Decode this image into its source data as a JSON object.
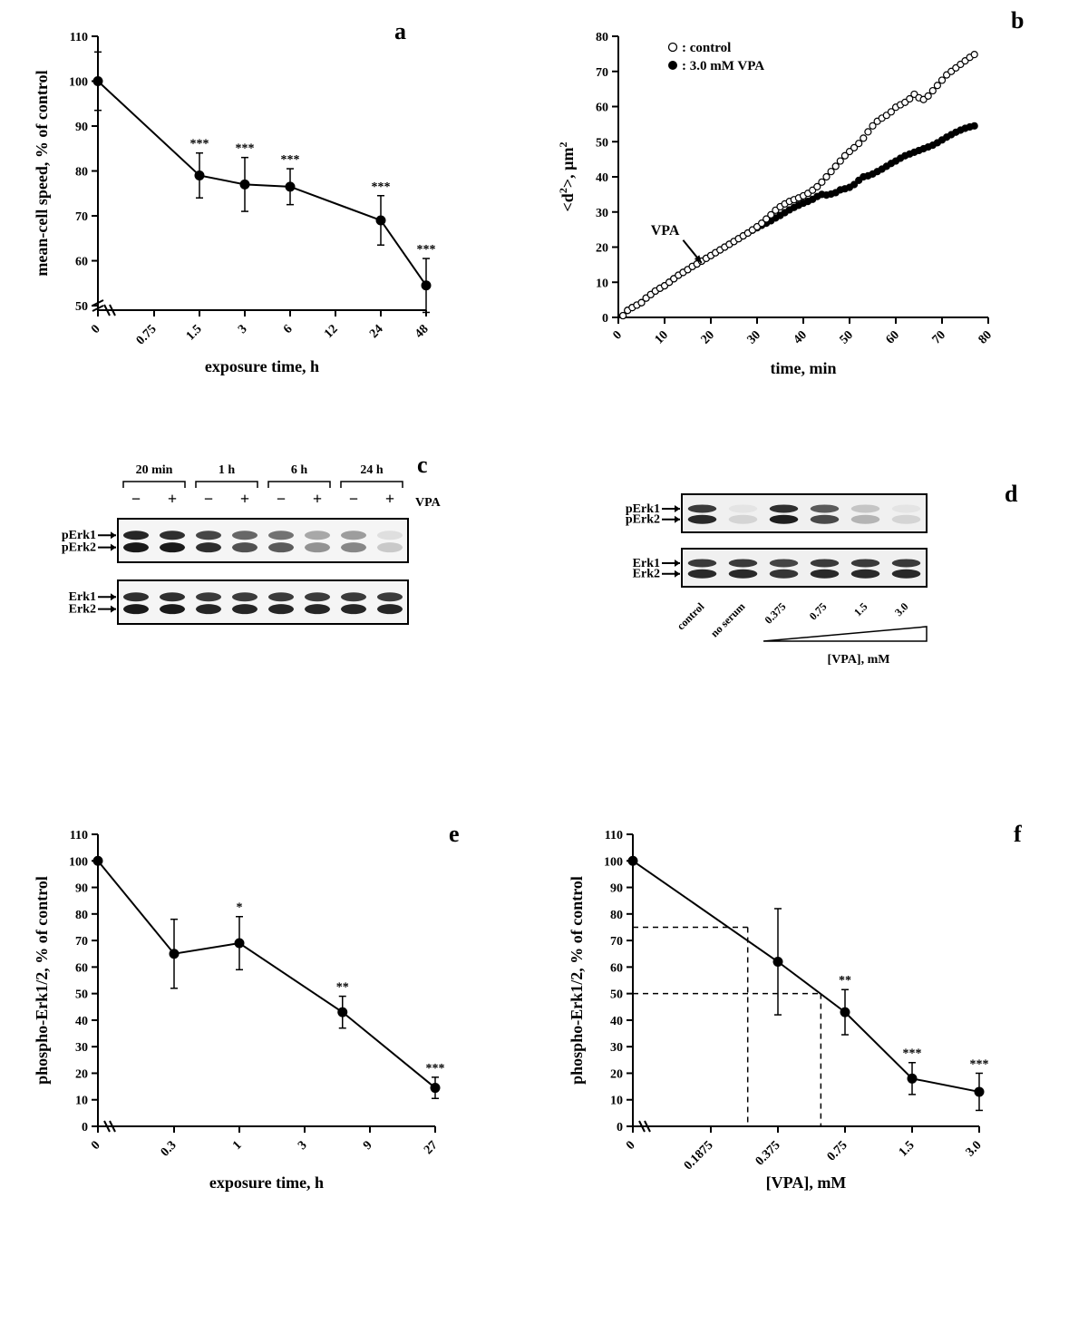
{
  "panels": {
    "a": {
      "label": "a",
      "label_fontsize": 26,
      "type": "line",
      "xlabel": "exposure time, h",
      "ylabel": "mean-cell speed, % of control",
      "label_fontsize_axis": 18,
      "tick_fontsize": 14,
      "ylim": [
        49,
        110
      ],
      "ytick_step": 10,
      "xticks": [
        0,
        0.75,
        1.5,
        3,
        6,
        12,
        24,
        48
      ],
      "xtick_labels": [
        "0",
        "0.75",
        "1.5",
        "3",
        "6",
        "12",
        "24",
        "48"
      ],
      "data": {
        "x_index": [
          0,
          2,
          3,
          4,
          6,
          7
        ],
        "y": [
          100,
          79,
          77,
          76.5,
          69,
          54.5
        ],
        "yerr": [
          6.5,
          5,
          6,
          4,
          5.5,
          6
        ],
        "sig": [
          "",
          "***",
          "***",
          "***",
          "***",
          "***"
        ]
      },
      "marker": {
        "fill": "#000000",
        "radius": 5
      },
      "line_color": "#000000",
      "line_width": 2,
      "error_cap_width": 8,
      "sig_fontsize": 14,
      "axis_break": true
    },
    "b": {
      "label": "b",
      "label_fontsize": 26,
      "type": "scatter",
      "xlabel": "time, min",
      "ylabel": "<d²>, µm²",
      "ylabel_raw": "<d²>, μm²",
      "label_fontsize_axis": 18,
      "tick_fontsize": 14,
      "xlim": [
        0,
        80
      ],
      "xtick_step": 10,
      "ylim": [
        0,
        80
      ],
      "ytick_step": 10,
      "legend": [
        {
          "marker": "open_circle",
          "label_prefix": "○:",
          "text": "control"
        },
        {
          "marker": "filled_circle",
          "label_prefix": "●:",
          "text": "3.0 mM VPA"
        }
      ],
      "legend_fontsize": 15,
      "arrow_label": "VPA",
      "arrow_label_fontsize": 16,
      "arrow_from": [
        14,
        22
      ],
      "arrow_to": [
        18,
        15.5
      ],
      "series": {
        "control": {
          "style": "open_circle",
          "radius": 3.5,
          "stroke": "#000000",
          "fill": "#ffffff",
          "points": [
            [
              1,
              0.5
            ],
            [
              2,
              2
            ],
            [
              3,
              2.8
            ],
            [
              4,
              3.5
            ],
            [
              5,
              4.2
            ],
            [
              6,
              5.5
            ],
            [
              7,
              6.5
            ],
            [
              8,
              7.5
            ],
            [
              9,
              8.3
            ],
            [
              10,
              9.0
            ],
            [
              11,
              10.0
            ],
            [
              12,
              11.0
            ],
            [
              13,
              12.0
            ],
            [
              14,
              12.8
            ],
            [
              15,
              13.6
            ],
            [
              16,
              14.5
            ],
            [
              17,
              15.2
            ],
            [
              18,
              16.0
            ],
            [
              19,
              16.8
            ],
            [
              20,
              17.6
            ],
            [
              21,
              18.4
            ],
            [
              22,
              19.2
            ],
            [
              23,
              20.0
            ],
            [
              24,
              20.8
            ],
            [
              25,
              21.6
            ],
            [
              26,
              22.4
            ],
            [
              27,
              23.2
            ],
            [
              28,
              24.0
            ],
            [
              29,
              24.9
            ],
            [
              30,
              25.8
            ],
            [
              31,
              26.8
            ],
            [
              32,
              28.0
            ],
            [
              33,
              29.2
            ],
            [
              34,
              30.5
            ],
            [
              35,
              31.5
            ],
            [
              36,
              32.3
            ],
            [
              37,
              33.0
            ],
            [
              38,
              33.5
            ],
            [
              39,
              34.0
            ],
            [
              40,
              34.6
            ],
            [
              41,
              35.3
            ],
            [
              42,
              36.2
            ],
            [
              43,
              37.2
            ],
            [
              44,
              38.5
            ],
            [
              45,
              40.0
            ],
            [
              46,
              41.5
            ],
            [
              47,
              43.0
            ],
            [
              48,
              44.5
            ],
            [
              49,
              46.0
            ],
            [
              50,
              47.2
            ],
            [
              51,
              48.3
            ],
            [
              52,
              49.5
            ],
            [
              53,
              51.0
            ],
            [
              54,
              52.8
            ],
            [
              55,
              54.5
            ],
            [
              56,
              55.8
            ],
            [
              57,
              56.7
            ],
            [
              58,
              57.5
            ],
            [
              59,
              58.5
            ],
            [
              60,
              59.8
            ],
            [
              61,
              60.5
            ],
            [
              62,
              61.2
            ],
            [
              63,
              62.2
            ],
            [
              64,
              63.5
            ],
            [
              65,
              62.5
            ],
            [
              66,
              62.0
            ],
            [
              67,
              63.0
            ],
            [
              68,
              64.5
            ],
            [
              69,
              66.0
            ],
            [
              70,
              67.5
            ],
            [
              71,
              69.0
            ],
            [
              72,
              70.0
            ],
            [
              73,
              71.0
            ],
            [
              74,
              72.0
            ],
            [
              75,
              73.0
            ],
            [
              76,
              74.0
            ],
            [
              77,
              74.8
            ]
          ]
        },
        "vpa": {
          "style": "filled_circle",
          "radius": 3.5,
          "stroke": "#000000",
          "fill": "#000000",
          "points": [
            [
              1,
              0.5
            ],
            [
              2,
              2.0
            ],
            [
              3,
              2.8
            ],
            [
              4,
              3.5
            ],
            [
              5,
              4.2
            ],
            [
              6,
              5.5
            ],
            [
              7,
              6.5
            ],
            [
              8,
              7.5
            ],
            [
              9,
              8.3
            ],
            [
              10,
              9.0
            ],
            [
              11,
              10.0
            ],
            [
              12,
              11.0
            ],
            [
              13,
              12.0
            ],
            [
              14,
              12.8
            ],
            [
              15,
              13.6
            ],
            [
              16,
              14.5
            ],
            [
              17,
              15.2
            ],
            [
              18,
              16.0
            ],
            [
              19,
              16.8
            ],
            [
              20,
              17.6
            ],
            [
              21,
              18.4
            ],
            [
              22,
              19.2
            ],
            [
              23,
              20.0
            ],
            [
              24,
              20.8
            ],
            [
              25,
              21.6
            ],
            [
              26,
              22.4
            ],
            [
              27,
              23.2
            ],
            [
              28,
              24.0
            ],
            [
              29,
              24.8
            ],
            [
              30,
              25.5
            ],
            [
              31,
              26.2
            ],
            [
              32,
              26.8
            ],
            [
              33,
              27.5
            ],
            [
              34,
              28.3
            ],
            [
              35,
              29.0
            ],
            [
              36,
              29.8
            ],
            [
              37,
              30.6
            ],
            [
              38,
              31.3
            ],
            [
              39,
              31.9
            ],
            [
              40,
              32.5
            ],
            [
              41,
              33.0
            ],
            [
              42,
              33.6
            ],
            [
              43,
              34.4
            ],
            [
              44,
              35.0
            ],
            [
              45,
              34.8
            ],
            [
              46,
              35.1
            ],
            [
              47,
              35.5
            ],
            [
              48,
              36.3
            ],
            [
              49,
              36.6
            ],
            [
              50,
              37.0
            ],
            [
              51,
              37.8
            ],
            [
              52,
              39.0
            ],
            [
              53,
              40.0
            ],
            [
              54,
              40.3
            ],
            [
              55,
              40.8
            ],
            [
              56,
              41.5
            ],
            [
              57,
              42.2
            ],
            [
              58,
              43.0
            ],
            [
              59,
              43.8
            ],
            [
              60,
              44.5
            ],
            [
              61,
              45.3
            ],
            [
              62,
              46.0
            ],
            [
              63,
              46.5
            ],
            [
              64,
              47.0
            ],
            [
              65,
              47.5
            ],
            [
              66,
              48.0
            ],
            [
              67,
              48.5
            ],
            [
              68,
              49.0
            ],
            [
              69,
              49.7
            ],
            [
              70,
              50.5
            ],
            [
              71,
              51.3
            ],
            [
              72,
              52.0
            ],
            [
              73,
              52.7
            ],
            [
              74,
              53.3
            ],
            [
              75,
              53.8
            ],
            [
              76,
              54.2
            ],
            [
              77,
              54.5
            ]
          ]
        }
      }
    },
    "c": {
      "label": "c",
      "label_fontsize": 26,
      "type": "western_blot",
      "time_groups": [
        "20 min",
        "1 h",
        "6 h",
        "24 h"
      ],
      "time_group_fontsize": 14,
      "lane_headers_per_group": [
        "−",
        "+"
      ],
      "lane_header_fontsize": 18,
      "right_label": "VPA",
      "right_label_fontsize": 14,
      "rows": [
        {
          "labels": [
            "pErk1",
            "pErk2"
          ]
        },
        {
          "labels": [
            "Erk1",
            "Erk2"
          ]
        }
      ],
      "row_label_fontsize": 14,
      "arrow_length": 18,
      "lane_count": 8,
      "intensities_top": [
        0.95,
        0.9,
        0.8,
        0.65,
        0.6,
        0.35,
        0.4,
        0.1
      ],
      "intensities_bottom": [
        0.9,
        0.9,
        0.85,
        0.85,
        0.85,
        0.85,
        0.85,
        0.85
      ],
      "blot_bg": "#f5f5f5",
      "band_color": "#1a1a1a",
      "border_color": "#000000"
    },
    "d": {
      "label": "d",
      "label_fontsize": 26,
      "type": "western_blot",
      "lane_count": 6,
      "rows": [
        {
          "labels": [
            "pErk1",
            "pErk2"
          ]
        },
        {
          "labels": [
            "Erk1",
            "Erk2"
          ]
        }
      ],
      "row_label_fontsize": 14,
      "arrow_length": 18,
      "xlabels": [
        "control",
        "no serum",
        "0.375",
        "0.75",
        "1.5",
        "3.0"
      ],
      "xlabel_fontsize": 12,
      "xaxis_label": "[VPA], mM",
      "xaxis_label_fontsize": 14,
      "triangle_over_lanes": [
        2,
        5
      ],
      "intensities_top": [
        0.85,
        0.05,
        0.9,
        0.7,
        0.2,
        0.05
      ],
      "intensities_bottom": [
        0.85,
        0.85,
        0.8,
        0.85,
        0.85,
        0.85
      ],
      "blot_bg": "#f0f0f0",
      "band_color": "#1a1a1a",
      "border_color": "#000000"
    },
    "e": {
      "label": "e",
      "label_fontsize": 26,
      "type": "line",
      "xlabel": "exposure time, h",
      "ylabel": "phospho-Erk1/2, % of control",
      "label_fontsize_axis": 18,
      "tick_fontsize": 14,
      "ylim": [
        0,
        110
      ],
      "ytick_step": 10,
      "xticks": [
        0,
        0.3,
        1,
        3,
        9,
        27
      ],
      "xtick_labels": [
        "0",
        "0.3",
        "1",
        "3",
        "9",
        "27"
      ],
      "axis_break": true,
      "data": {
        "x_index": [
          0,
          1,
          2,
          3.58,
          5
        ],
        "y": [
          100,
          65,
          69,
          43,
          14.5
        ],
        "yerr": [
          0,
          13,
          10,
          6,
          4
        ],
        "sig": [
          "",
          "",
          "*",
          "**",
          "***"
        ]
      },
      "marker": {
        "fill": "#000000",
        "radius": 5
      },
      "line_color": "#000000",
      "line_width": 2,
      "error_cap_width": 8,
      "sig_fontsize": 14
    },
    "f": {
      "label": "f",
      "label_fontsize": 26,
      "type": "line",
      "xlabel": "[VPA], mM",
      "ylabel": "phospho-Erk1/2, % of control",
      "label_fontsize_axis": 18,
      "tick_fontsize": 14,
      "ylim": [
        0,
        110
      ],
      "ytick_step": 10,
      "xticks": [
        0,
        0.1875,
        0.375,
        0.75,
        1.5,
        3.0
      ],
      "xtick_labels": [
        "0",
        "0.1875",
        "0.375",
        "0.75",
        "1.5",
        "3.0"
      ],
      "axis_break": true,
      "data": {
        "x_index": [
          0,
          2,
          3,
          4,
          5
        ],
        "y": [
          100,
          62,
          43,
          18,
          13
        ],
        "yerr": [
          0,
          20,
          8.5,
          6,
          7
        ],
        "sig": [
          "",
          "",
          "**",
          "***",
          "***"
        ]
      },
      "dashed_refs": [
        {
          "y": 75,
          "x_end_idx": 1.55
        },
        {
          "y": 50,
          "x_end_idx": 2.64
        }
      ],
      "dash_color": "#000000",
      "dash_pattern": "6,5",
      "marker": {
        "fill": "#000000",
        "radius": 5
      },
      "line_color": "#000000",
      "line_width": 2,
      "error_cap_width": 8,
      "sig_fontsize": 14
    }
  },
  "colors": {
    "background": "#ffffff",
    "axis": "#000000",
    "text": "#000000"
  }
}
